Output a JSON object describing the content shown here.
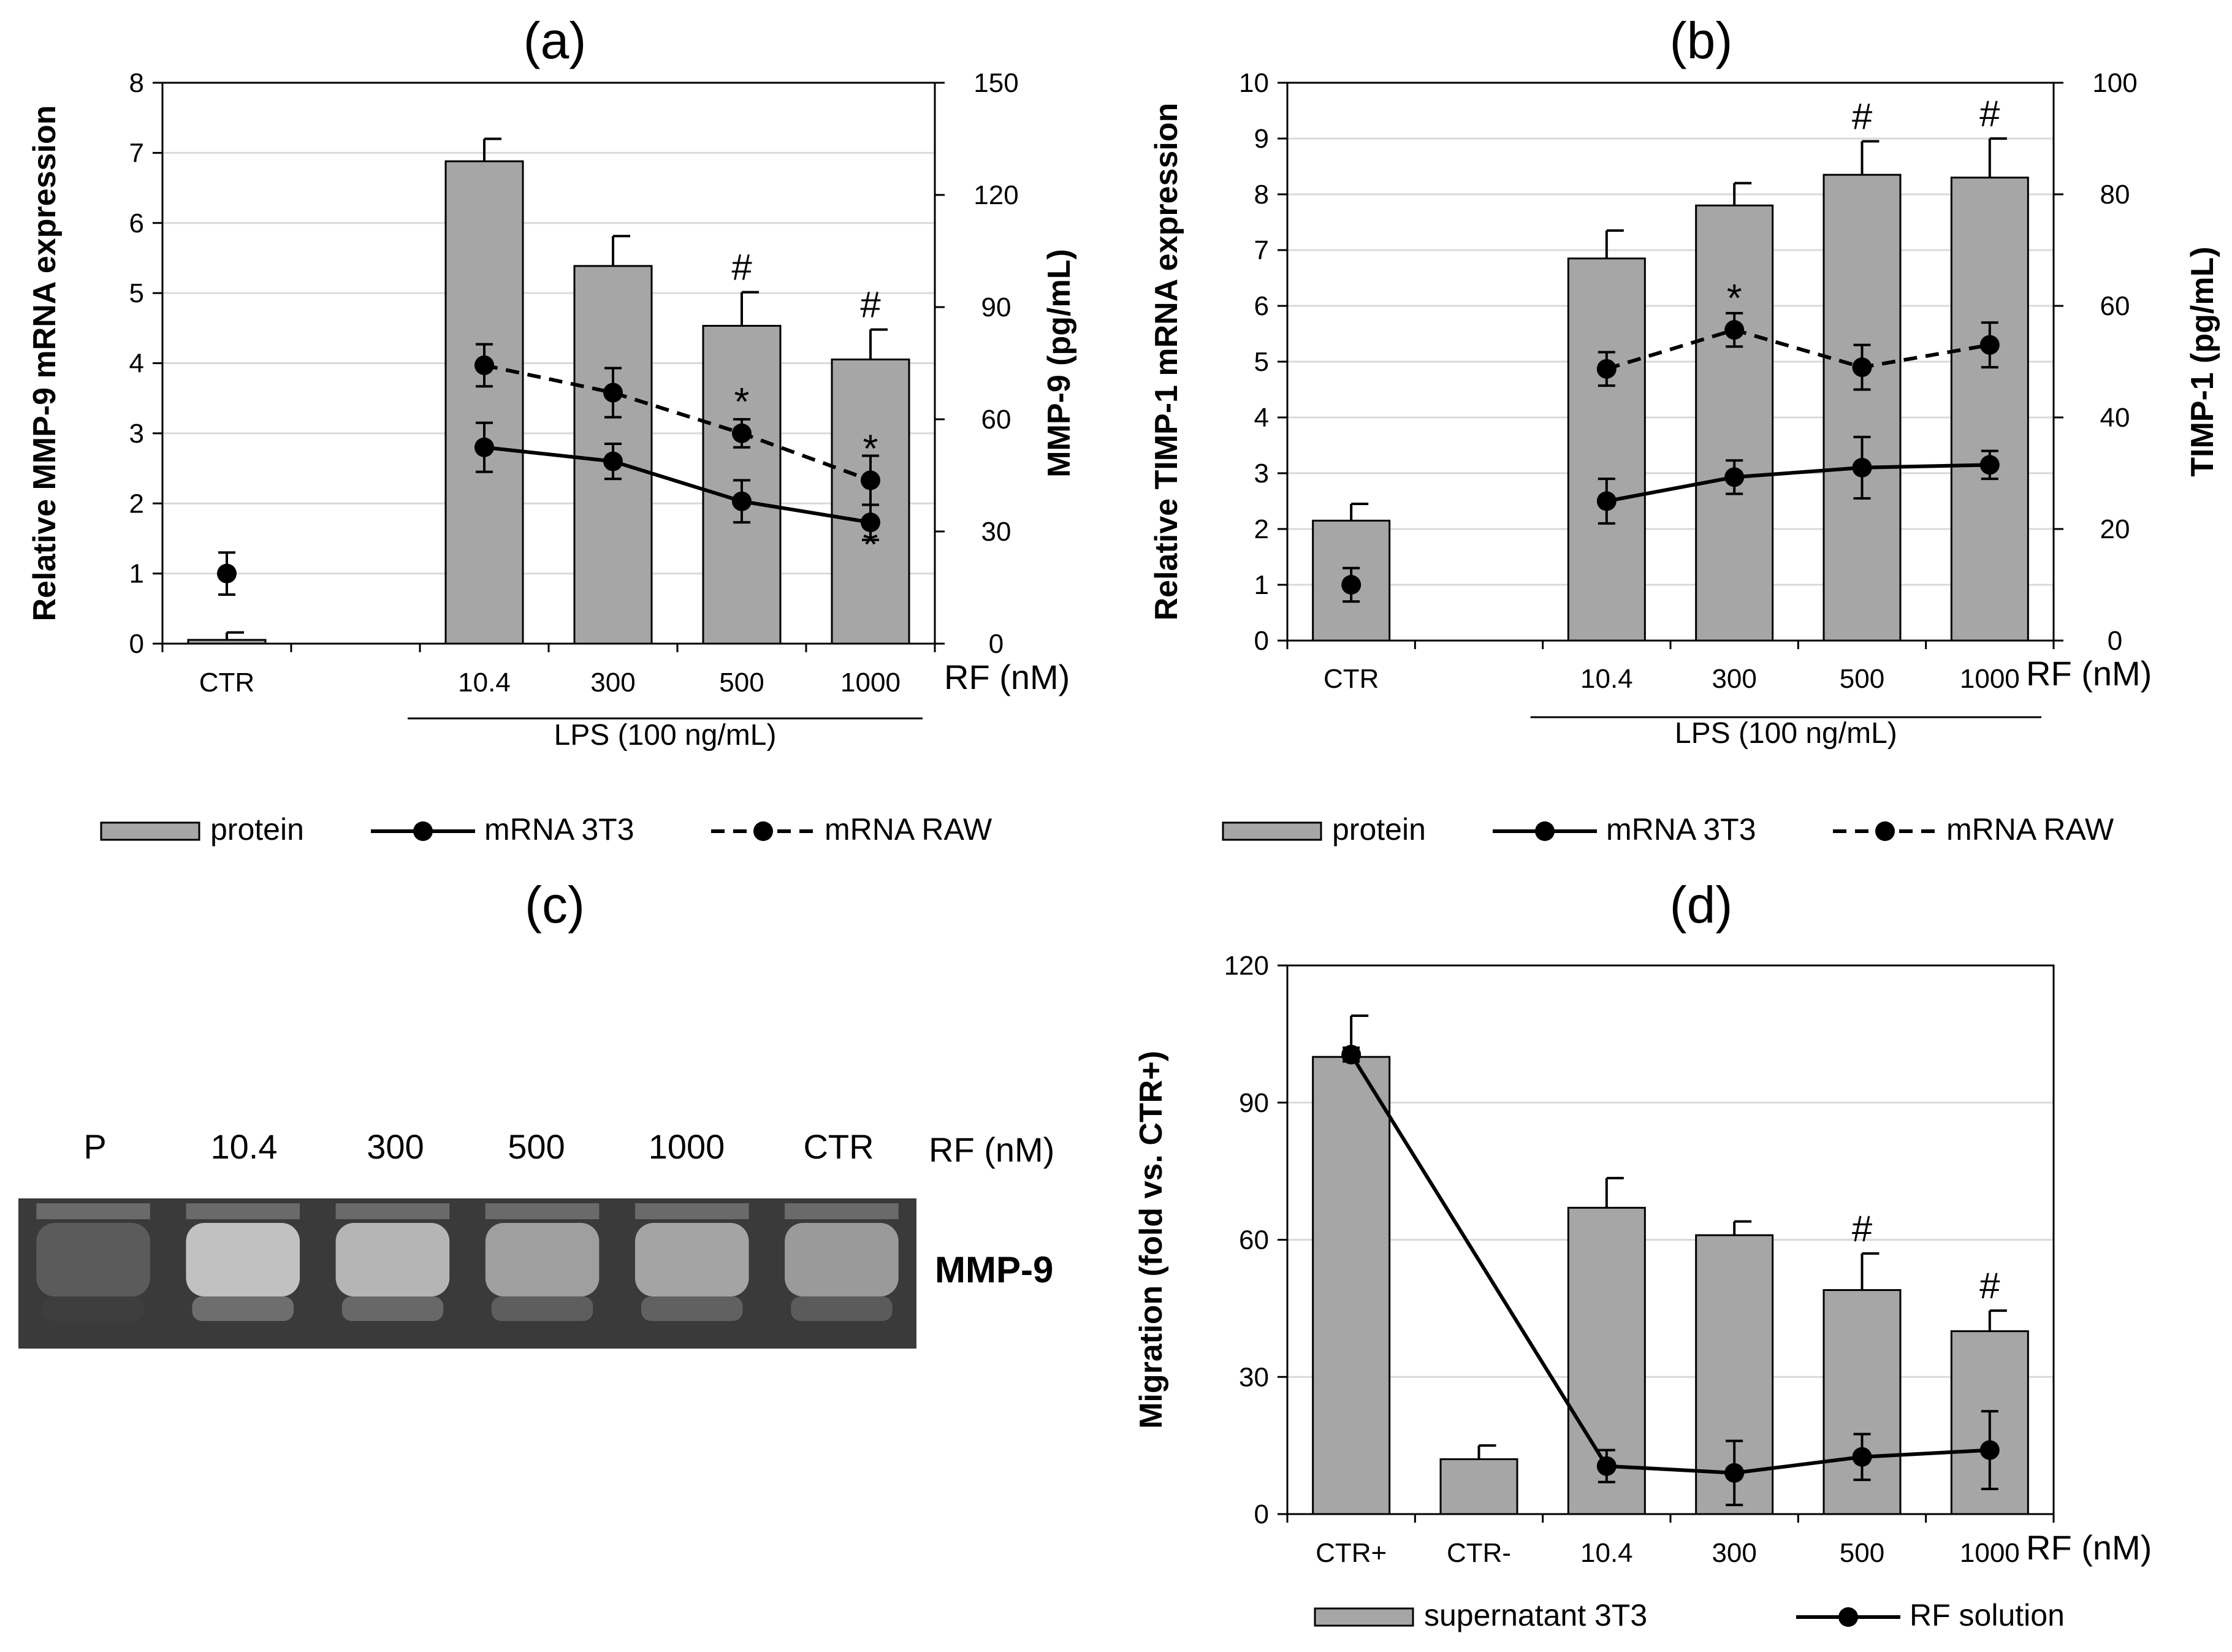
{
  "colors": {
    "bar": "#a6a6a6",
    "bar_edge": "#000000",
    "line": "#000000",
    "grid": "#d9d9d9",
    "gel_bg": "#3a3a3a",
    "band": "#d0d0d0"
  },
  "chart_data": [
    {
      "panel": "(a)",
      "type": "bar",
      "categories": [
        "CTR",
        "",
        "10.4",
        "300",
        "500",
        "1000"
      ],
      "xaxis_suffix": "RF (nM)",
      "group_label": "LPS (100 ng/mL)",
      "ylabel": "Relative MMP-9  mRNA expression",
      "y2label": "MMP-9 (pg/mL)",
      "ylim": [
        0,
        8
      ],
      "yticks": [
        0,
        1,
        2,
        3,
        4,
        5,
        6,
        7,
        8
      ],
      "y2lim": [
        0,
        150
      ],
      "y2ticks": [
        0,
        30,
        60,
        90,
        120,
        150
      ],
      "grid": true,
      "legend_position": "bottom",
      "series": [
        {
          "name": "protein",
          "kind": "bar",
          "axis": "right",
          "values": [
            1,
            null,
            129,
            101,
            85,
            76
          ],
          "errors": [
            2,
            null,
            6,
            8,
            9,
            8
          ],
          "marks": [
            "",
            "",
            "",
            "",
            "#",
            "#"
          ]
        },
        {
          "name": "mRNA 3T3",
          "kind": "line",
          "dash": false,
          "axis": "left",
          "values": [
            1.0,
            null,
            2.8,
            2.6,
            2.03,
            1.73
          ],
          "errors": [
            0.3,
            null,
            0.35,
            0.25,
            0.3,
            0.25
          ],
          "marks": [
            "",
            "",
            "",
            "",
            "",
            "*"
          ]
        },
        {
          "name": "mRNA RAW",
          "kind": "line",
          "dash": true,
          "axis": "left",
          "values": [
            null,
            null,
            3.97,
            3.58,
            3.0,
            2.33
          ],
          "errors": [
            null,
            null,
            0.3,
            0.35,
            0.2,
            0.35
          ],
          "marks": [
            "",
            "",
            "",
            "",
            "*",
            "*"
          ]
        }
      ]
    },
    {
      "panel": "(b)",
      "type": "bar",
      "categories": [
        "CTR",
        "",
        "10.4",
        "300",
        "500",
        "1000"
      ],
      "xaxis_suffix": "RF (nM)",
      "group_label": "LPS (100 ng/mL)",
      "ylabel": "Relative TIMP-1  mRNA expression",
      "y2label": "TIMP-1 (pg/mL)",
      "ylim": [
        0,
        10
      ],
      "yticks": [
        0,
        1,
        2,
        3,
        4,
        5,
        6,
        7,
        8,
        9,
        10
      ],
      "y2lim": [
        0,
        100
      ],
      "y2ticks": [
        0,
        20,
        40,
        60,
        80,
        100
      ],
      "grid": true,
      "legend_position": "bottom",
      "series": [
        {
          "name": "protein",
          "kind": "bar",
          "axis": "right",
          "values": [
            21.5,
            null,
            68.5,
            78,
            83.5,
            83
          ],
          "errors": [
            3,
            null,
            5,
            4,
            6,
            7
          ],
          "marks": [
            "",
            "",
            "",
            "",
            "#",
            "#"
          ]
        },
        {
          "name": "mRNA 3T3",
          "kind": "line",
          "dash": false,
          "axis": "left",
          "values": [
            1.0,
            null,
            2.5,
            2.93,
            3.1,
            3.15
          ],
          "errors": [
            0.3,
            null,
            0.4,
            0.3,
            0.55,
            0.25
          ],
          "marks": [
            "",
            "",
            "",
            "",
            "",
            ""
          ]
        },
        {
          "name": "mRNA RAW",
          "kind": "line",
          "dash": true,
          "axis": "left",
          "values": [
            null,
            null,
            4.87,
            5.57,
            4.9,
            5.3
          ],
          "errors": [
            null,
            null,
            0.3,
            0.3,
            0.4,
            0.4
          ],
          "marks": [
            "",
            "",
            "",
            "*",
            "",
            ""
          ]
        }
      ]
    },
    {
      "panel": "(d)",
      "type": "bar",
      "categories": [
        "CTR+",
        "CTR-",
        "10.4",
        "300",
        "500",
        "1000"
      ],
      "xaxis_suffix": "RF (nM)",
      "ylabel": "Migration (fold vs. CTR+)",
      "ylim": [
        0,
        120
      ],
      "yticks": [
        0,
        30,
        60,
        90,
        120
      ],
      "grid": true,
      "legend_position": "bottom",
      "series": [
        {
          "name": "supernatant 3T3",
          "kind": "bar",
          "values": [
            100,
            12,
            67,
            61,
            49,
            40
          ],
          "errors": [
            9,
            3,
            6.5,
            3,
            8,
            4.5
          ],
          "marks": [
            "",
            "",
            "",
            "",
            "#",
            "#"
          ]
        },
        {
          "name": "RF solution",
          "kind": "line",
          "dash": false,
          "values": [
            100.5,
            null,
            10.5,
            9,
            12.5,
            14
          ],
          "errors": [
            1.5,
            null,
            3.5,
            7,
            5,
            8.5
          ],
          "marks": [
            "",
            "",
            "",
            "",
            "",
            ""
          ]
        }
      ]
    }
  ],
  "gel": {
    "panel": "(c)",
    "lanes": [
      "P",
      "10.4",
      "300",
      "500",
      "1000",
      "CTR"
    ],
    "suffix": "RF (nM)",
    "band_label": "MMP-9",
    "band_intensity": [
      0.1,
      1.0,
      0.9,
      0.7,
      0.75,
      0.65
    ]
  }
}
